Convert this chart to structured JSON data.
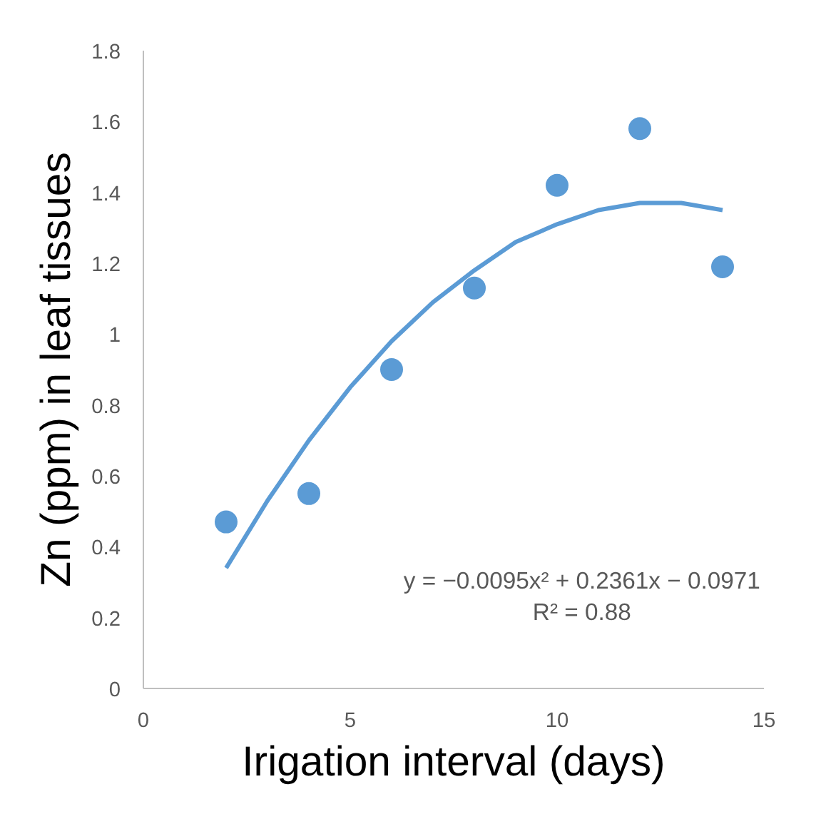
{
  "chart_data": {
    "type": "scatter",
    "xlabel": "Irigation interval (days)",
    "ylabel": "Zn (ppm) in leaf tissues",
    "xlim": [
      0,
      15
    ],
    "xticks": [
      0,
      5,
      10,
      15
    ],
    "ylim": [
      0,
      1.8
    ],
    "yticks": [
      {
        "value": 0,
        "label": "0"
      },
      0.2,
      0.4,
      0.6,
      0.8,
      {
        "value": 1,
        "label": "1"
      },
      1.2,
      1.4,
      1.6,
      1.8
    ],
    "grid": false,
    "series": [
      {
        "marker": "circle",
        "color": "#5b9bd5",
        "x": [
          2,
          4,
          6,
          8,
          10,
          12,
          14
        ],
        "values": [
          0.47,
          0.55,
          0.9,
          1.13,
          1.42,
          1.58,
          1.19
        ]
      },
      {
        "type": "line",
        "color": "#5b9bd5",
        "line_style": "solid",
        "x": [
          2,
          3,
          4,
          5,
          6,
          7,
          8,
          9,
          10,
          11,
          12,
          13,
          14
        ],
        "values": [
          0.34,
          0.53,
          0.7,
          0.85,
          0.98,
          1.09,
          1.18,
          1.26,
          1.31,
          1.35,
          1.37,
          1.37,
          1.35
        ]
      }
    ],
    "annotations": [
      "y = −0.0095x² + 0.2361x − 0.0971",
      "R² = 0.88"
    ]
  }
}
